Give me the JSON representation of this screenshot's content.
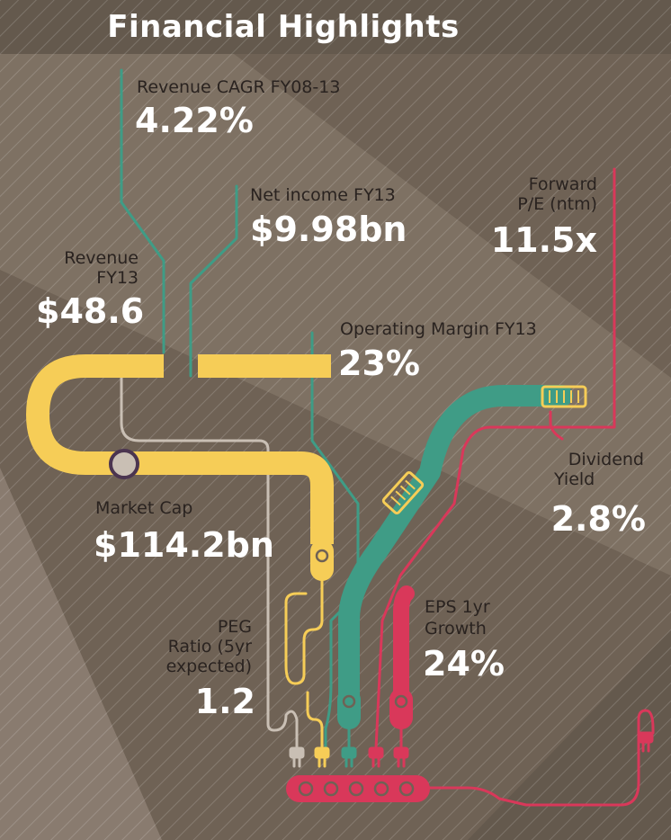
{
  "title": "Financial Highlights",
  "colors": {
    "yellow": "#f6cd57",
    "teal": "#3f9c86",
    "red": "#d9385a",
    "grey": "#c9bfb4",
    "marker": "#4b3550"
  },
  "metrics": {
    "revenue_cagr": {
      "label": "Revenue CAGR FY08-13",
      "value": "4.22%"
    },
    "net_income": {
      "label": "Net income FY13",
      "value": "$9.98bn"
    },
    "revenue": {
      "label_line1": "Revenue",
      "label_line2": "FY13",
      "value": "$48.6"
    },
    "forward_pe": {
      "label_line1": "Forward",
      "label_line2": "P/E (ntm)",
      "value": "11.5x"
    },
    "operating_margin": {
      "label": "Operating Margin FY13",
      "value": "23%"
    },
    "dividend_yield": {
      "label_line1": "Dividend",
      "label_line2": "Yield",
      "value": "2.8%"
    },
    "market_cap": {
      "label": "Market Cap",
      "value": "$114.2bn"
    },
    "eps_growth": {
      "label_line1": "EPS 1yr",
      "label_line2": "Growth",
      "value": "24%"
    },
    "peg_ratio": {
      "label_line1": "PEG",
      "label_line2": "Ratio (5yr",
      "label_line3": "expected)",
      "value": "1.2"
    }
  }
}
